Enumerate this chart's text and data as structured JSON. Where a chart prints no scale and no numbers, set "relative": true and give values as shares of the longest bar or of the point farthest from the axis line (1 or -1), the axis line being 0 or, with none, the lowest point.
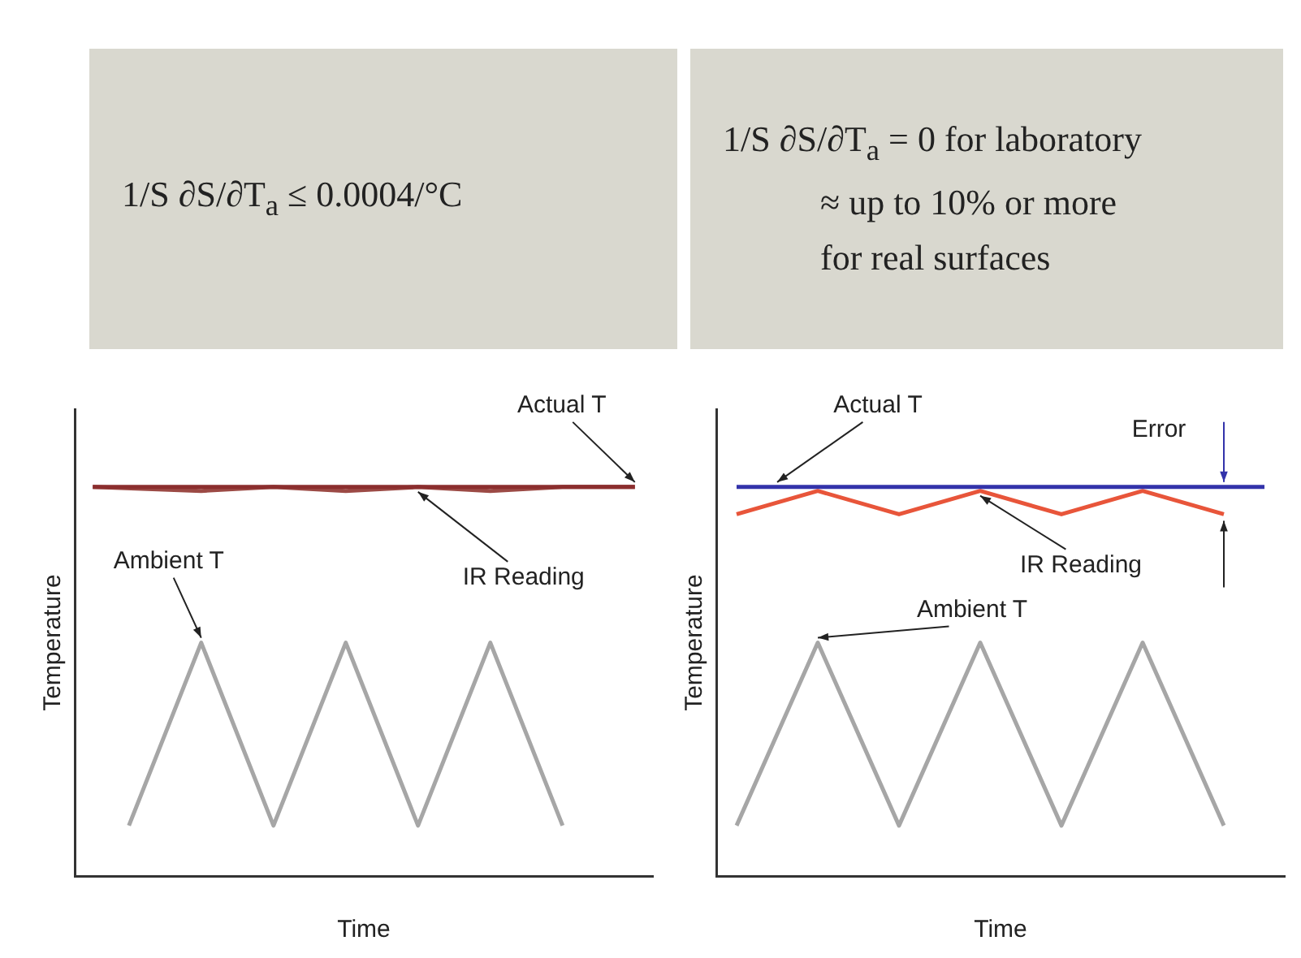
{
  "chart_data": [
    {
      "type": "other",
      "annotations": [
        "1/S ∂S/∂T$_{a}$ ≤ 0.0004/°C"
      ]
    },
    {
      "type": "other",
      "annotations": [
        "1/S ∂S/∂T$_{a}$ = 0 for laboratory",
        "≈ up to 10% or more",
        "for real surfaces"
      ]
    },
    {
      "type": "line",
      "xlabel": "Time",
      "ylabel": "Temperature",
      "relative": true,
      "legend": false,
      "grid": false,
      "marker": "none",
      "categories": [
        null,
        null,
        null,
        null,
        null,
        null,
        null,
        null,
        null,
        null,
        null,
        null,
        null,
        null,
        null,
        null
      ],
      "series": [
        {
          "name": "Actual T",
          "color": "#8b2e2e",
          "values": [
            1,
            1,
            1,
            1,
            1,
            1,
            1,
            1,
            1,
            1,
            1,
            1,
            1,
            1,
            1,
            1
          ]
        },
        {
          "name": "IR Reading",
          "color": "#9c4a45",
          "values": [
            1,
            null,
            null,
            0.99,
            null,
            1,
            null,
            0.99,
            null,
            1,
            null,
            0.99,
            null,
            1,
            null,
            1
          ]
        },
        {
          "name": "Ambient T",
          "color": "#a6a6a6",
          "values": [
            null,
            0.13,
            null,
            0.6,
            null,
            0.13,
            null,
            0.6,
            null,
            0.13,
            null,
            0.6,
            null,
            0.13,
            null,
            null
          ]
        }
      ]
    },
    {
      "type": "line",
      "xlabel": "Time",
      "ylabel": "Temperature",
      "relative": true,
      "legend": false,
      "grid": false,
      "marker": "none",
      "annotations": [
        "Error"
      ],
      "categories": [
        null,
        null,
        null,
        null,
        null,
        null,
        null,
        null,
        null,
        null,
        null,
        null,
        null,
        null
      ],
      "series": [
        {
          "name": "Actual T",
          "color": "#3333aa",
          "values": [
            1,
            1,
            1,
            1,
            1,
            1,
            1,
            1,
            1,
            1,
            1,
            1,
            1,
            1
          ]
        },
        {
          "name": "IR Reading",
          "color": "#e8553a",
          "values": [
            0.93,
            null,
            0.99,
            null,
            0.93,
            null,
            0.99,
            null,
            0.93,
            null,
            0.99,
            null,
            0.93,
            null
          ]
        },
        {
          "name": "Ambient T",
          "color": "#a6a6a6",
          "values": [
            0.13,
            null,
            0.6,
            null,
            0.13,
            null,
            0.6,
            null,
            0.13,
            null,
            0.6,
            null,
            0.13,
            null
          ]
        }
      ]
    }
  ]
}
